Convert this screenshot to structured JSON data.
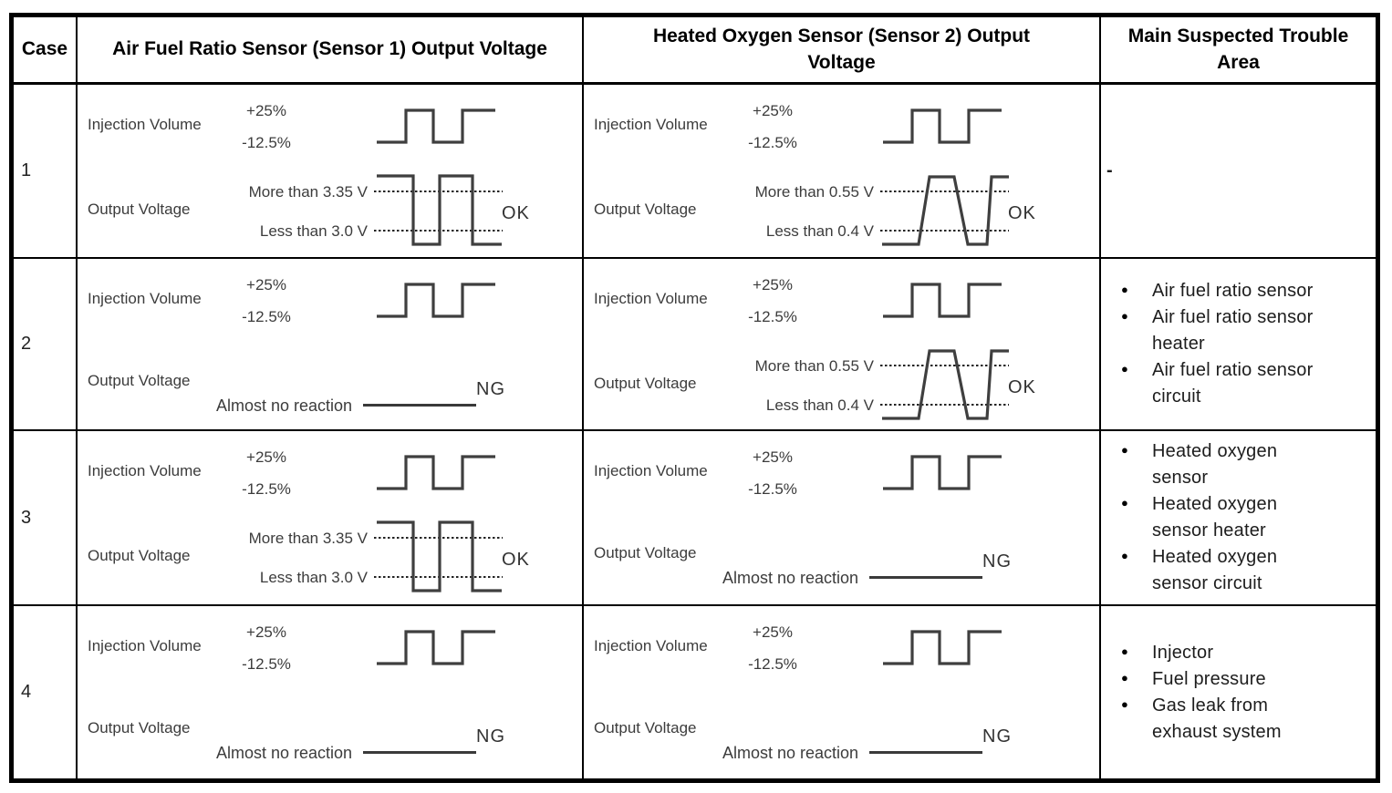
{
  "table": {
    "waveform_color": "#3f3f3f",
    "border_color": "#000000",
    "headers": {
      "case": "Case",
      "sensor1": "Air Fuel Ratio Sensor (Sensor 1) Output Voltage",
      "sensor2": "Heated Oxygen Sensor (Sensor 2) Output Voltage",
      "trouble": "Main Suspected Trouble Area"
    },
    "labels": {
      "injection_volume": "Injection Volume",
      "output_voltage": "Output Voltage",
      "inj_high": "+25%",
      "inj_low": "-12.5%",
      "afr_upper": "More than 3.35 V",
      "afr_lower": "Less than 3.0 V",
      "o2_upper": "More than 0.55 V",
      "o2_lower": "Less than 0.4 V",
      "no_reaction": "Almost no reaction",
      "ok": "OK",
      "ng": "NG",
      "bullet": "●"
    },
    "rows": [
      {
        "case": "1",
        "sensor1_result": "OK",
        "sensor2_result": "OK",
        "trouble_dash": "-",
        "trouble_items": []
      },
      {
        "case": "2",
        "sensor1_result": "NG",
        "sensor2_result": "OK",
        "trouble_items": [
          "Air fuel ratio sensor",
          "Air fuel ratio sensor heater",
          "Air fuel ratio sensor circuit"
        ]
      },
      {
        "case": "3",
        "sensor1_result": "OK",
        "sensor2_result": "NG",
        "trouble_items": [
          "Heated oxygen sensor",
          "Heated oxygen sensor heater",
          "Heated oxygen sensor circuit"
        ]
      },
      {
        "case": "4",
        "sensor1_result": "NG",
        "sensor2_result": "NG",
        "trouble_items": [
          "Injector",
          "Fuel pressure",
          "Gas leak from exhaust system"
        ]
      }
    ]
  }
}
